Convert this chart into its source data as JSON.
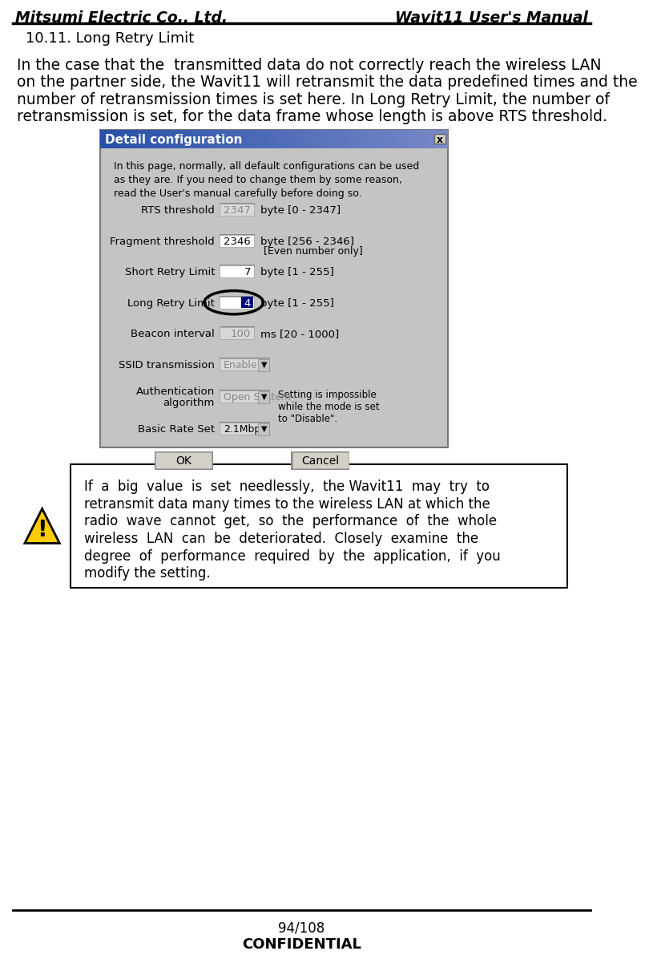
{
  "header_left": "Mitsumi Electric Co., Ltd.",
  "header_right": "Wavit11 User's Manual",
  "section_title": "10.11. Long Retry Limit",
  "body_text_lines": [
    "In the case that the  transmitted data do not correctly reach the wireless LAN",
    "on the partner side, the Wavit11 will retransmit the data predefined times and the",
    "number of retransmission times is set here. In Long Retry Limit, the number of",
    "retransmission is set, for the data frame whose length is above RTS threshold."
  ],
  "dialog_title": "Detail configuration",
  "dialog_info": "In this page, normally, all default configurations can be used\nas they are. If you need to change them by some reason,\nread the User's manual carefully before doing so.",
  "dialog_fields": [
    {
      "label": "RTS threshold",
      "value": "2347",
      "hint": "byte [0 - 2347]",
      "hint2": "",
      "greyed": true,
      "highlighted": false
    },
    {
      "label": "Fragment threshold",
      "value": "2346",
      "hint": "byte [256 - 2346]",
      "hint2": "[Even number only]",
      "greyed": false,
      "highlighted": false
    },
    {
      "label": "Short Retry Limit",
      "value": "7",
      "hint": "byte [1 - 255]",
      "hint2": "",
      "greyed": false,
      "highlighted": false
    },
    {
      "label": "Long Retry Limit",
      "value": "4",
      "hint": "byte [1 - 255]",
      "hint2": "",
      "greyed": false,
      "highlighted": true
    },
    {
      "label": "Beacon interval",
      "value": "100",
      "hint": "ms [20 - 1000]",
      "hint2": "",
      "greyed": true,
      "highlighted": false
    }
  ],
  "dialog_ssid_label": "SSID transmission",
  "dialog_ssid_value": "Enable",
  "dialog_auth_label1": "Authentication",
  "dialog_auth_label2": "algorithm",
  "dialog_auth_value": "Open System",
  "dialog_auth_note": "Setting is impossible\nwhile the mode is set\nto \"Disable\".",
  "dialog_rate_label": "Basic Rate Set",
  "dialog_rate_value": "2.1Mbps",
  "dialog_ok": "OK",
  "dialog_cancel": "Cancel",
  "warning_text_lines": [
    "If  a  big  value  is  set  needlessly,  the Wavit11  may  try  to",
    "retransmit data many times to the wireless LAN at which the",
    "radio  wave  cannot  get,  so  the  performance  of  the  whole",
    "wireless  LAN  can  be  deteriorated.  Closely  examine  the",
    "degree  of  performance  required  by  the  application,  if  you",
    "modify the setting."
  ],
  "footer_page": "94/108",
  "footer_confidential": "CONFIDENTIAL",
  "bg_color": "#ffffff",
  "dialog_bg": "#c0c0c0",
  "dialog_title_bg_left": "#3060b0",
  "dialog_title_bg_right": "#8090c8"
}
